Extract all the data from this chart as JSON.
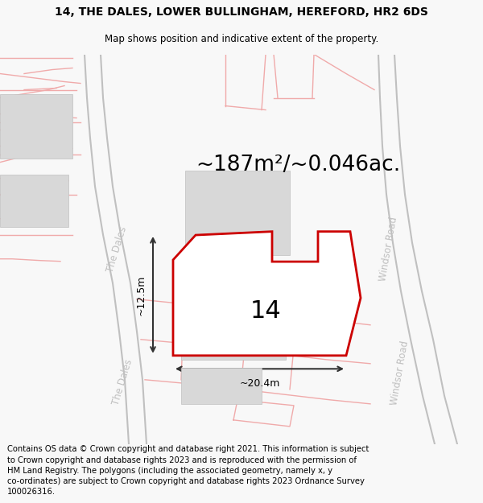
{
  "title_line1": "14, THE DALES, LOWER BULLINGHAM, HEREFORD, HR2 6DS",
  "title_line2": "Map shows position and indicative extent of the property.",
  "area_text": "~187m²/~0.046ac.",
  "label_number": "14",
  "dim_width": "~20.4m",
  "dim_height": "~12.5m",
  "footer_text": "Contains OS data © Crown copyright and database right 2021. This information is subject to Crown copyright and database rights 2023 and is reproduced with the permission of HM Land Registry. The polygons (including the associated geometry, namely x, y co-ordinates) are subject to Crown copyright and database rights 2023 Ordnance Survey 100026316.",
  "bg_color": "#f8f8f8",
  "map_bg": "#ffffff",
  "road_color_light": "#f0aaaa",
  "road_color_dark": "#c0c0c0",
  "plot_outline_color": "#cc0000",
  "building_fill": "#d8d8d8",
  "building_edge": "#c0c0c0",
  "title_fontsize": 10,
  "footer_fontsize": 7.2,
  "area_fontsize": 19,
  "label_fontsize": 22,
  "road_label_fontsize": 8.5
}
